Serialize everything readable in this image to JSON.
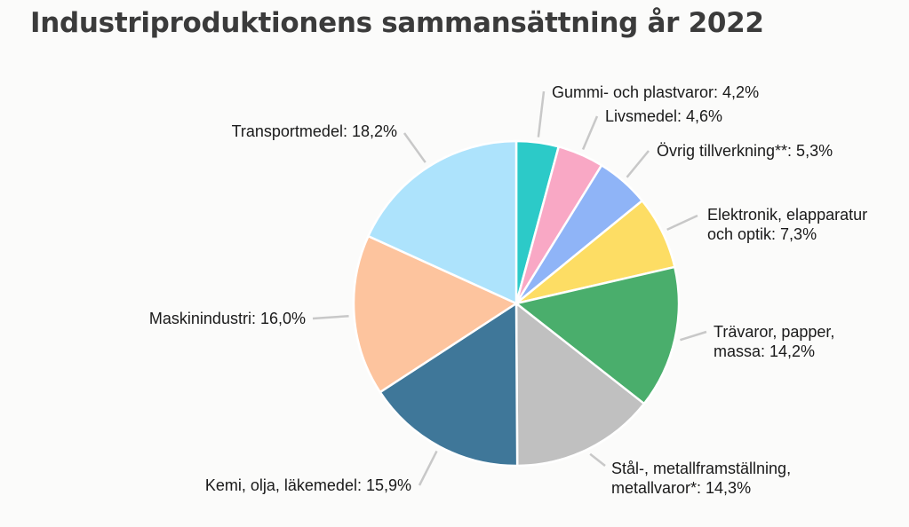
{
  "title": "Industriproduktionens sammansättning år 2022",
  "chart_data": {
    "type": "pie",
    "title": "Industriproduktionens sammansättning år 2022",
    "slices": [
      {
        "label": [
          "Gummi- och plastvaror: 4,2%"
        ],
        "value": 4.2,
        "color": "#2ccac8"
      },
      {
        "label": [
          "Livsmedel: 4,6%"
        ],
        "value": 4.6,
        "color": "#f9a8c5"
      },
      {
        "label": [
          "Övrig tillverkning**: 5,3%"
        ],
        "value": 5.3,
        "color": "#8fb4f7"
      },
      {
        "label": [
          "Elektronik, elapparatur",
          "och optik: 7,3%"
        ],
        "value": 7.3,
        "color": "#fddd64"
      },
      {
        "label": [
          "Trävaror, papper,",
          "massa: 14,2%"
        ],
        "value": 14.2,
        "color": "#4aae6c"
      },
      {
        "label": [
          "Stål-, metallframställning,",
          "metallvaror*: 14,3%"
        ],
        "value": 14.3,
        "color": "#c0c0c0"
      },
      {
        "label": [
          "Kemi, olja, läkemedel: 15,9%"
        ],
        "value": 15.9,
        "color": "#3f7799"
      },
      {
        "label": [
          "Maskinindustri: 16,0%"
        ],
        "value": 16.0,
        "color": "#fdc49e"
      },
      {
        "label": [
          "Transportmedel: 18,2%"
        ],
        "value": 18.2,
        "color": "#ade3fc"
      }
    ]
  }
}
